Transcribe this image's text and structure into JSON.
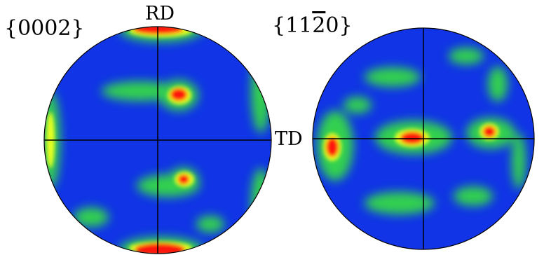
{
  "labels": {
    "left_pole_figure": "{0002}",
    "right_pole_figure_open": "{11",
    "right_pole_figure_bar": "2",
    "right_pole_figure_close": "0}",
    "rd": "RD",
    "td": "TD"
  },
  "colors": {
    "background_low": "#1034e6",
    "mid": "#30d050",
    "high": "#e8ff20",
    "peak": "#ff1810",
    "crosshair": "#000000"
  },
  "pole_figures": [
    {
      "name": "{0002}",
      "intensity_peaks": [
        {
          "where": "top rim",
          "level": "high"
        },
        {
          "where": "bottom rim",
          "level": "high"
        },
        {
          "where": "upper center-right",
          "level": "high"
        },
        {
          "where": "lower center-right",
          "level": "high"
        }
      ]
    },
    {
      "name": "{11-20}",
      "intensity_peaks": [
        {
          "where": "left rim on TD axis",
          "level": "high"
        },
        {
          "where": "center",
          "level": "high"
        },
        {
          "where": "right of center on TD axis",
          "level": "high"
        }
      ]
    }
  ]
}
